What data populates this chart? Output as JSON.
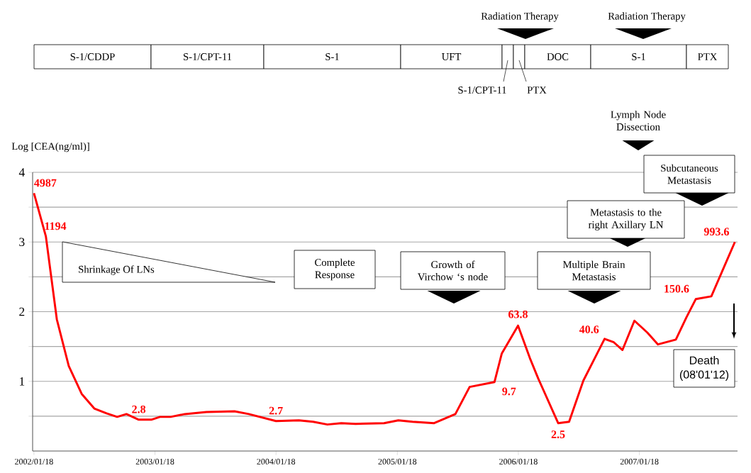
{
  "chart_data": {
    "type": "line",
    "ylabel": "Log [CEA(ng/ml)]",
    "x": [
      "2002-01-18",
      "2002-02-23",
      "2002-03-28",
      "2002-05-03",
      "2002-06-11",
      "2002-07-19",
      "2002-08-25",
      "2002-09-26",
      "2002-10-24",
      "2002-11-30",
      "2003-01-07",
      "2003-02-02",
      "2003-03-06",
      "2003-04-18",
      "2003-06-22",
      "2003-09-15",
      "2003-10-28",
      "2004-01-18",
      "2004-03-27",
      "2004-05-09",
      "2004-06-21",
      "2004-08-02",
      "2004-09-14",
      "2004-12-09",
      "2005-01-21",
      "2005-03-05",
      "2005-05-09",
      "2005-07-12",
      "2005-08-24",
      "2005-11-07",
      "2005-11-29",
      "2006-01-17",
      "2006-02-22",
      "2006-03-19",
      "2006-05-18",
      "2006-06-20",
      "2006-08-02",
      "2006-10-05",
      "2006-11-02",
      "2006-11-28",
      "2007-01-03",
      "2007-02-11",
      "2007-03-15",
      "2007-05-08",
      "2007-06-09",
      "2007-07-07",
      "2007-08-23",
      "2007-11-02"
    ],
    "values": [
      3.7,
      3.08,
      1.89,
      1.22,
      0.82,
      0.61,
      0.54,
      0.49,
      0.53,
      0.45,
      0.45,
      0.49,
      0.49,
      0.53,
      0.56,
      0.57,
      0.53,
      0.43,
      0.44,
      0.42,
      0.38,
      0.4,
      0.39,
      0.4,
      0.44,
      0.42,
      0.4,
      0.53,
      0.92,
      0.99,
      1.4,
      1.8,
      1.33,
      1.04,
      0.4,
      0.42,
      1.01,
      1.61,
      1.56,
      1.45,
      1.87,
      1.7,
      1.53,
      1.6,
      1.92,
      2.18,
      2.22,
      3.0
    ],
    "color": "#ff0000",
    "xlim": [
      "2002-01-14",
      "2007-11-10"
    ],
    "xticks": [
      {
        "value": "2002-01-18",
        "label": "2002/01/18"
      },
      {
        "value": "2003-01-18",
        "label": "2003/01/18"
      },
      {
        "value": "2004-01-18",
        "label": "2004/01/18"
      },
      {
        "value": "2005-01-18",
        "label": "2005/01/18"
      },
      {
        "value": "2006-01-18",
        "label": "2006/01/18"
      },
      {
        "value": "2007-01-18",
        "label": "2007/01/18"
      }
    ],
    "ylim": [
      0,
      4
    ],
    "yticks": [
      {
        "value": 0.5,
        "label": null
      },
      1,
      {
        "value": 1.5,
        "label": null
      },
      2,
      {
        "value": 2.5,
        "label": null
      },
      3,
      {
        "value": 3.5,
        "label": null
      },
      4
    ],
    "grid": "y",
    "annotations": [
      "S-1/CDDP",
      "S-1/CPT-11",
      "S-1",
      "UFT",
      "S-1/CPT-11",
      "PTX",
      "DOC",
      "S-1",
      "PTX",
      "Radiation Therapy",
      "Radiation Therapy",
      "Lymph Node Dissection",
      "Shrinkage  Of LNs",
      "Complete Response",
      "Growth of Virchow ‘s node",
      "Multiple Brain Metastasis",
      "Metastasis to the right Axillary  LN",
      "Subcutaneous Metastasis",
      "Death (08'01'12)",
      {
        "text": "4987",
        "x": "2002-01-18",
        "y": 3.7
      },
      {
        "text": "1194",
        "x": "2002-02-23",
        "y": 3.08
      },
      {
        "text": "2.8",
        "x": "2002-11-30",
        "y": 0.45
      },
      {
        "text": "2.7",
        "x": "2004-01-18",
        "y": 0.43
      },
      {
        "text": "9.7",
        "x": "2005-11-07",
        "y": 0.99
      },
      {
        "text": "63.8",
        "x": "2006-01-17",
        "y": 1.8
      },
      {
        "text": "2.5",
        "x": "2006-05-18",
        "y": 0.4
      },
      {
        "text": "40.6",
        "x": "2006-10-05",
        "y": 1.61
      },
      {
        "text": "150.6",
        "x": "2007-07-07",
        "y": 2.18
      },
      {
        "text": "993.6",
        "x": "2007-11-02",
        "y": 3.0
      }
    ]
  }
}
